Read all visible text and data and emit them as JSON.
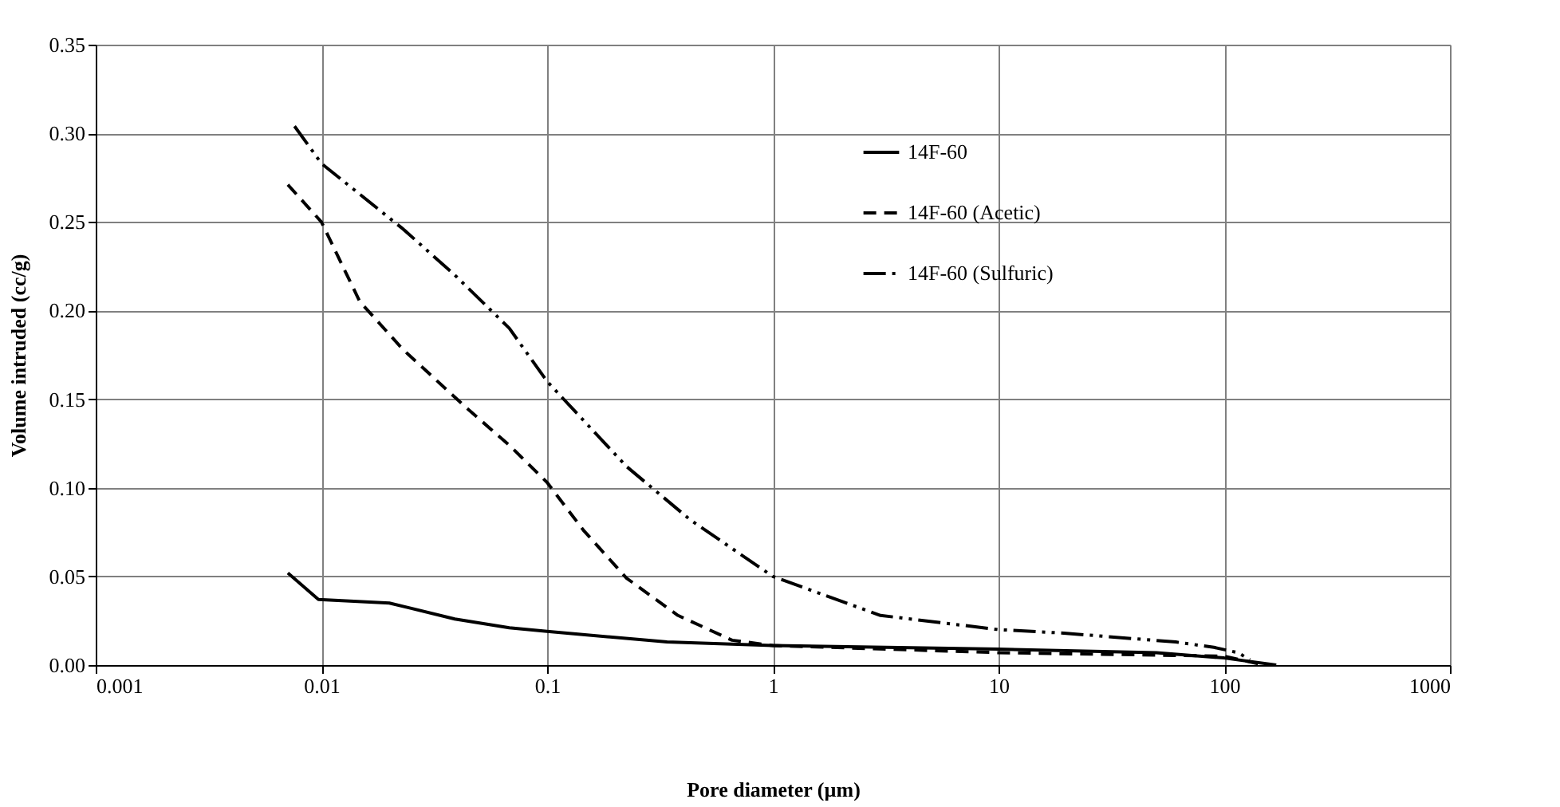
{
  "chart_data": {
    "type": "line",
    "xlabel": "Pore diameter (µm)",
    "ylabel": "Volume intruded (cc/g)",
    "log": "x",
    "xlim": [
      0.001,
      1000
    ],
    "xticks": [
      0.001,
      0.01,
      0.1,
      1,
      10,
      100,
      1000
    ],
    "ylim": [
      0,
      0.35
    ],
    "yticks": [
      {
        "value": 0,
        "label": "0.00"
      },
      {
        "value": 0.05,
        "label": "0.05"
      },
      {
        "value": 0.1,
        "label": "0.10"
      },
      {
        "value": 0.15,
        "label": "0.15"
      },
      {
        "value": 0.2,
        "label": "0.20"
      },
      {
        "value": 0.25,
        "label": "0.25"
      },
      {
        "value": 0.3,
        "label": "0.30"
      },
      {
        "value": 0.35,
        "label": "0.35"
      }
    ],
    "grid": true,
    "legend": "top right",
    "marker": "none",
    "series": [
      {
        "name": "14F-60",
        "color": "#000000",
        "line_style": "solid",
        "x": [
          0.0071,
          0.0097,
          0.02,
          0.039,
          0.068,
          0.1,
          0.34,
          1,
          10,
          50,
          100,
          170
        ],
        "values": [
          0.052,
          0.037,
          0.035,
          0.026,
          0.021,
          0.019,
          0.013,
          0.011,
          0.009,
          0.007,
          0.004,
          0
        ]
      },
      {
        "name": "14F-60 (Acetic)",
        "color": "#000000",
        "line_style": "dashed",
        "x": [
          0.0071,
          0.01,
          0.0148,
          0.023,
          0.044,
          0.068,
          0.1,
          0.145,
          0.225,
          0.38,
          0.66,
          1,
          10,
          100,
          150
        ],
        "values": [
          0.271,
          0.25,
          0.205,
          0.178,
          0.145,
          0.124,
          0.103,
          0.076,
          0.049,
          0.028,
          0.014,
          0.011,
          0.007,
          0.005,
          0
        ]
      },
      {
        "name": "14F-60 (Sulfuric)",
        "color": "#000000",
        "line_style": "dashdot",
        "x": [
          0.0076,
          0.01,
          0.023,
          0.039,
          0.068,
          0.1,
          0.225,
          0.43,
          1,
          3,
          10,
          19.5,
          61,
          90,
          115,
          130
        ],
        "values": [
          0.304,
          0.283,
          0.246,
          0.22,
          0.19,
          0.16,
          0.112,
          0.082,
          0.05,
          0.028,
          0.02,
          0.018,
          0.013,
          0.01,
          0.007,
          0.003
        ]
      }
    ]
  }
}
